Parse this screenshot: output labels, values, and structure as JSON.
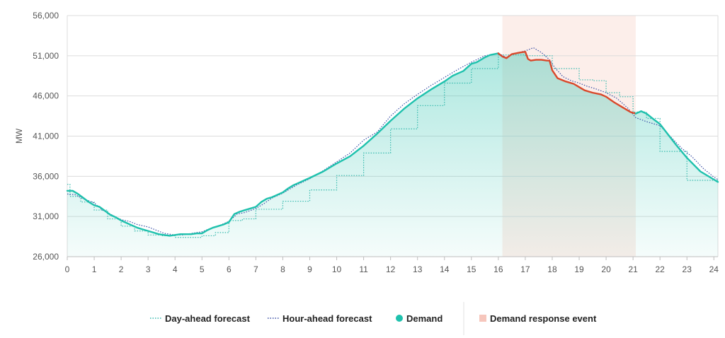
{
  "chart_data": {
    "type": "line",
    "ylabel": "MW",
    "xlabel": "",
    "xlim": [
      0,
      24.15
    ],
    "ylim": [
      26000,
      56000
    ],
    "x_ticks": [
      "0",
      "1",
      "2",
      "3",
      "4",
      "5",
      "6",
      "7",
      "8",
      "9",
      "10",
      "11",
      "12",
      "13",
      "14",
      "15",
      "16",
      "17",
      "18",
      "19",
      "20",
      "21",
      "22",
      "23",
      "24"
    ],
    "y_ticks": [
      "26,000",
      "31,000",
      "36,000",
      "41,000",
      "46,000",
      "51,000",
      "56,000"
    ],
    "grid": "horizontal",
    "legend_position": "bottom",
    "event_window": {
      "name": "Demand response event",
      "start": 16.15,
      "end": 21.1
    },
    "colors": {
      "demand": "#1fc1ad",
      "event_line": "#d9482b",
      "event_band": "#fcece8",
      "forecast": "#35b9ad",
      "hour_ahead": "#3a4fa6",
      "event_text": "#d9482b"
    },
    "series": [
      {
        "name": "Demand",
        "x": [
          0,
          0.2,
          0.4,
          0.6,
          0.8,
          1,
          1.2,
          1.4,
          1.6,
          1.8,
          2,
          2.2,
          2.4,
          2.6,
          2.8,
          3,
          3.2,
          3.4,
          3.6,
          3.8,
          4,
          4.2,
          4.4,
          4.6,
          4.8,
          5,
          5.2,
          5.4,
          5.6,
          5.8,
          6,
          6.1,
          6.2,
          6.4,
          6.6,
          6.8,
          7,
          7.2,
          7.4,
          7.6,
          7.8,
          8,
          8.2,
          8.4,
          8.6,
          8.8,
          9,
          9.5,
          10,
          10.5,
          11,
          11.5,
          12,
          12.5,
          13,
          13.5,
          14,
          14.3,
          14.5,
          14.7,
          15,
          15.2,
          15.5,
          15.7,
          16,
          16.15,
          16.3,
          16.5,
          16.8,
          17,
          17.1,
          17.2,
          17.4,
          17.6,
          17.8,
          17.9,
          18,
          18.2,
          18.5,
          18.8,
          19,
          19.2,
          19.5,
          19.8,
          20,
          20.3,
          20.6,
          20.9,
          21.1,
          21.3,
          21.5,
          21.8,
          22,
          22.3,
          22.6,
          23,
          23.5,
          24,
          24.15
        ],
        "y": [
          34200,
          34200,
          33800,
          33300,
          32800,
          32400,
          32200,
          31700,
          31200,
          30900,
          30500,
          30200,
          29900,
          29600,
          29400,
          29200,
          29000,
          28800,
          28700,
          28600,
          28700,
          28800,
          28800,
          28800,
          28900,
          28900,
          29300,
          29600,
          29800,
          30000,
          30300,
          30800,
          31300,
          31600,
          31800,
          32000,
          32200,
          32800,
          33200,
          33400,
          33700,
          34000,
          34500,
          34900,
          35200,
          35500,
          35800,
          36600,
          37600,
          38500,
          39800,
          41300,
          42900,
          44400,
          45700,
          46800,
          47800,
          48500,
          48800,
          49100,
          50000,
          50200,
          50800,
          51100,
          51300,
          50900,
          50700,
          51200,
          51400,
          51500,
          50600,
          50400,
          50500,
          50500,
          50400,
          50400,
          49200,
          48200,
          47800,
          47500,
          47100,
          46700,
          46400,
          46200,
          45900,
          45200,
          44600,
          44000,
          43800,
          44100,
          43800,
          43000,
          42500,
          41200,
          39900,
          38300,
          36600,
          35600,
          35300
        ]
      },
      {
        "name": "Day-ahead forecast",
        "x": [
          0,
          0.1,
          0.1,
          0.5,
          0.5,
          1,
          1,
          1.5,
          1.5,
          2,
          2,
          2.5,
          2.5,
          3,
          3,
          3.5,
          3.5,
          4,
          4,
          4.5,
          4.5,
          5,
          5,
          5.5,
          5.5,
          6,
          6,
          6.5,
          6.5,
          7,
          7,
          7.5,
          7.5,
          8,
          8,
          8.5,
          8.5,
          9,
          9,
          10,
          10,
          11,
          11,
          12,
          12,
          13,
          13,
          14,
          14,
          15,
          15,
          16,
          16,
          16.5,
          16.5,
          17,
          17,
          17.5,
          17.5,
          18,
          18,
          18.5,
          18.5,
          19,
          19,
          19.5,
          19.5,
          20,
          20,
          20.5,
          20.5,
          21,
          21,
          21.5,
          21.5,
          22,
          22,
          22.5,
          22.5,
          23,
          23,
          23.5,
          23.5,
          24,
          24.15
        ],
        "y": [
          35000,
          35000,
          33500,
          33500,
          32800,
          32800,
          31800,
          31800,
          30700,
          30700,
          29800,
          29800,
          29200,
          29200,
          28700,
          28700,
          28600,
          28600,
          28400,
          28400,
          28400,
          28400,
          28600,
          28600,
          29000,
          29000,
          30500,
          30500,
          30700,
          30700,
          31900,
          31900,
          31900,
          31900,
          32900,
          32900,
          32900,
          32900,
          34300,
          34300,
          36100,
          36100,
          38900,
          38900,
          41900,
          41900,
          44800,
          44800,
          47600,
          47600,
          49400,
          49400,
          51100,
          51100,
          51100,
          51100,
          51000,
          51000,
          51000,
          51000,
          49400,
          49400,
          49400,
          49400,
          48000,
          48000,
          47900,
          47900,
          46400,
          46400,
          45900,
          45900,
          44000,
          44000,
          43200,
          43200,
          39100,
          39100,
          39100,
          39100,
          35500,
          35500,
          35500,
          35500,
          35500
        ]
      },
      {
        "name": "Hour-ahead forecast",
        "x": [
          0,
          0.3,
          0.6,
          1,
          1.3,
          1.6,
          2,
          2.3,
          2.6,
          3,
          3.3,
          3.6,
          4,
          4.3,
          4.6,
          5,
          5.3,
          5.6,
          6,
          6.3,
          6.6,
          7,
          7.3,
          7.6,
          8,
          8.5,
          9,
          9.5,
          10,
          10.5,
          11,
          11.5,
          12,
          12.5,
          13,
          13.5,
          14,
          14.5,
          15,
          15.5,
          16,
          16.3,
          16.6,
          17,
          17.3,
          17.6,
          17.9,
          18.1,
          18.4,
          18.7,
          19,
          19.3,
          19.6,
          20,
          20.4,
          20.8,
          21.1,
          21.5,
          22,
          22.4,
          22.8,
          23.2,
          23.6,
          24,
          24.15
        ],
        "y": [
          33800,
          33700,
          33200,
          32700,
          31800,
          31300,
          30600,
          30400,
          30000,
          29700,
          29300,
          28900,
          28700,
          28700,
          28900,
          29100,
          29500,
          29800,
          30400,
          31300,
          31500,
          32000,
          32600,
          33300,
          33900,
          34900,
          35700,
          36700,
          37800,
          38900,
          40500,
          41500,
          43500,
          45000,
          46200,
          47300,
          48300,
          49300,
          50200,
          51000,
          51300,
          50800,
          51300,
          51600,
          52000,
          51400,
          50500,
          49500,
          48400,
          47900,
          47600,
          47200,
          46900,
          46400,
          45700,
          44500,
          43300,
          42800,
          42300,
          40900,
          39500,
          38400,
          37000,
          35900,
          35600
        ]
      }
    ]
  }
}
